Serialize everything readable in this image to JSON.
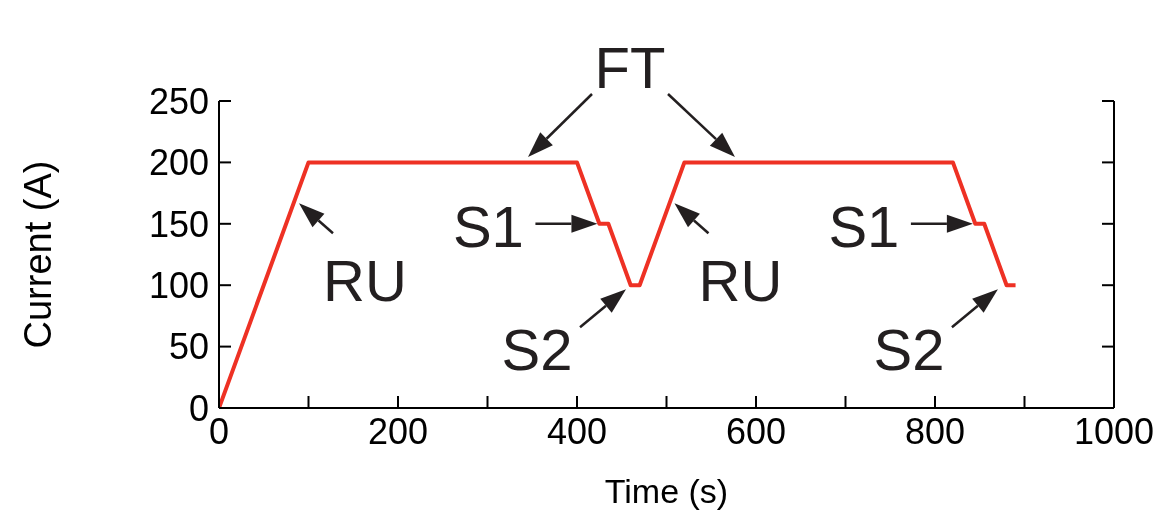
{
  "chart_data": {
    "type": "line",
    "xlabel": "Time (s)",
    "ylabel": "Current (A)",
    "x": [
      0,
      100,
      400,
      425,
      435,
      460,
      470,
      520,
      820,
      845,
      855,
      880,
      890
    ],
    "series": [
      {
        "color": "#ee3124",
        "values": [
          0,
          200,
          200,
          150,
          150,
          100,
          100,
          200,
          200,
          150,
          150,
          100,
          100
        ]
      }
    ],
    "xlim": [
      0,
      1000
    ],
    "xticks": [
      0,
      {
        "value": 100,
        "label": null
      },
      200,
      {
        "value": 300,
        "label": null
      },
      400,
      {
        "value": 500,
        "label": null
      },
      600,
      {
        "value": 700,
        "label": null
      },
      800,
      {
        "value": 900,
        "label": null
      },
      1000
    ],
    "ylim": [
      0,
      250
    ],
    "yticks": [
      0,
      50,
      100,
      150,
      200,
      250
    ],
    "marker": "none",
    "line_style": "solid",
    "annotations": [
      "FT",
      {
        "text": "RU",
        "x": 85,
        "y": 170
      },
      {
        "text": "S1",
        "x": 430,
        "y": 150
      },
      {
        "text": "S2",
        "x": 462,
        "y": 100
      },
      {
        "text": "RU",
        "x": 505,
        "y": 170
      },
      {
        "text": "S1",
        "x": 850,
        "y": 150
      },
      {
        "text": "S2",
        "x": 878,
        "y": 100
      }
    ]
  }
}
